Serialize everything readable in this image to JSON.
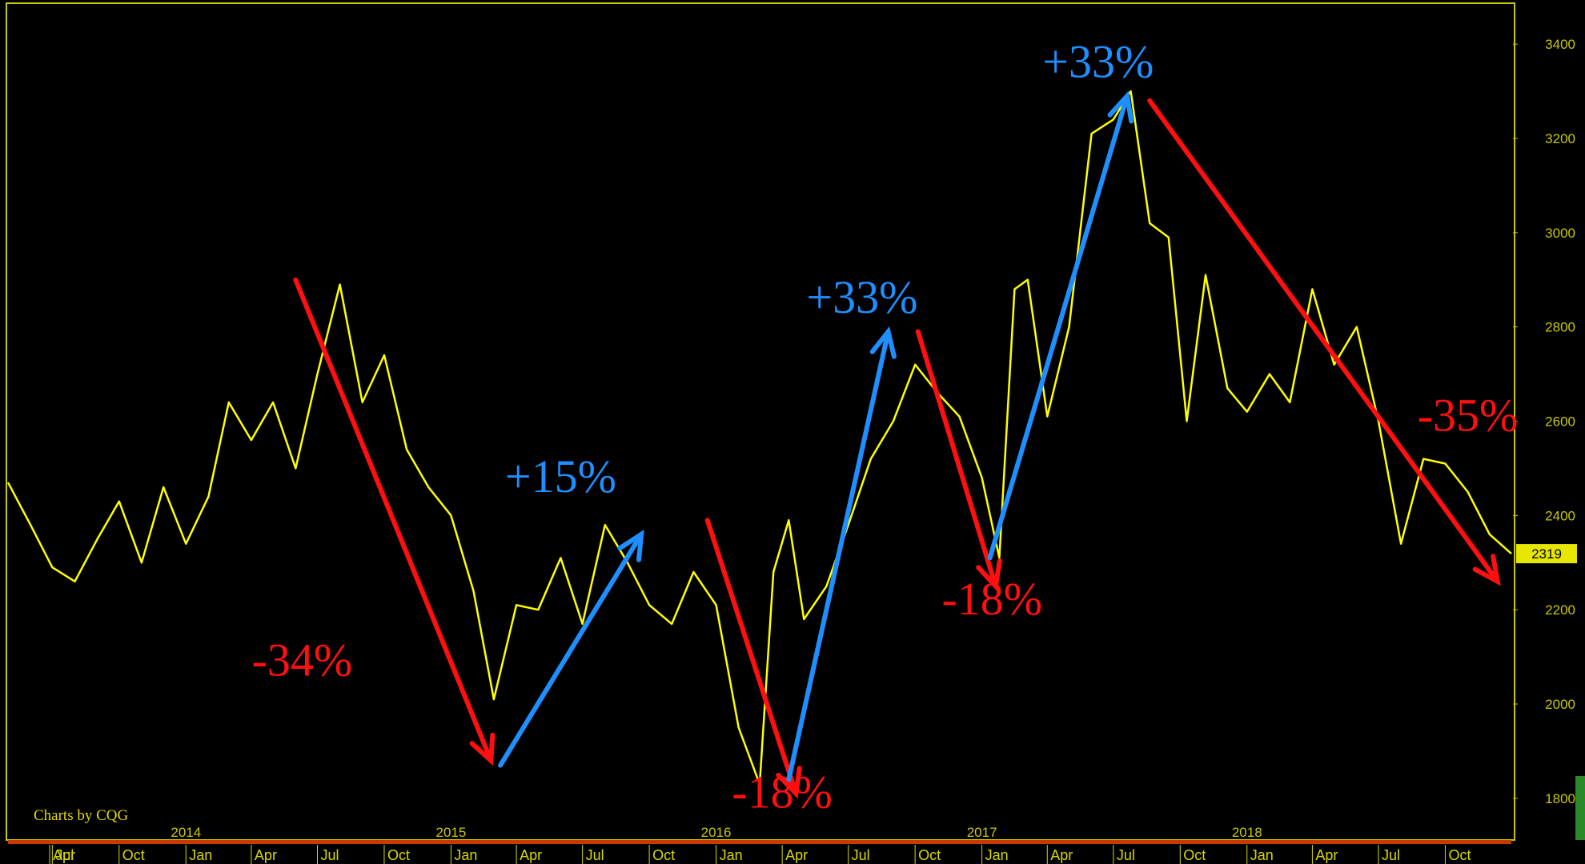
{
  "colors": {
    "background": "#000000",
    "price_line": "#ffff00",
    "axis_text": "#c8c800",
    "down_arrow": "#ff0f0f",
    "up_arrow": "#1f8fff",
    "last_value_badge": "#e6e600"
  },
  "credit": "Charts by CQG",
  "last_value": "2319",
  "chart_data": {
    "type": "line",
    "title": "",
    "xlabel": "",
    "ylabel": "",
    "ylim": [
      1720,
      3480
    ],
    "xlim": [
      "2013-05-01",
      "2018-12-31"
    ],
    "y_ticks": [
      "3400",
      "3200",
      "3000",
      "2800",
      "2600",
      "2400",
      "2200",
      "2000",
      "1800"
    ],
    "year_ticks": [
      {
        "label": "2014",
        "date": "2014-01-01"
      },
      {
        "label": "2015",
        "date": "2015-01-01"
      },
      {
        "label": "2016",
        "date": "2016-01-01"
      },
      {
        "label": "2017",
        "date": "2017-01-01"
      },
      {
        "label": "2018",
        "date": "2018-01-01"
      }
    ],
    "month_ticks": [
      {
        "label": "Apr",
        "date": "2013-04-01"
      },
      {
        "label": "Jul",
        "date": "2013-07-01"
      },
      {
        "label": "Oct",
        "date": "2013-10-01"
      },
      {
        "label": "Jan",
        "date": "2014-01-01"
      },
      {
        "label": "Apr",
        "date": "2014-04-01"
      },
      {
        "label": "Jul",
        "date": "2014-07-01"
      },
      {
        "label": "Oct",
        "date": "2014-10-01"
      },
      {
        "label": "Jan",
        "date": "2015-01-01"
      },
      {
        "label": "Apr",
        "date": "2015-04-01"
      },
      {
        "label": "Jul",
        "date": "2015-07-01"
      },
      {
        "label": "Oct",
        "date": "2015-10-01"
      },
      {
        "label": "Jan",
        "date": "2016-01-01"
      },
      {
        "label": "Apr",
        "date": "2016-04-01"
      },
      {
        "label": "Jul",
        "date": "2016-07-01"
      },
      {
        "label": "Oct",
        "date": "2016-10-01"
      },
      {
        "label": "Jan",
        "date": "2017-01-01"
      },
      {
        "label": "Apr",
        "date": "2017-04-01"
      },
      {
        "label": "Jul",
        "date": "2017-07-01"
      },
      {
        "label": "Oct",
        "date": "2017-10-01"
      },
      {
        "label": "Jan",
        "date": "2018-01-01"
      },
      {
        "label": "Apr",
        "date": "2018-04-01"
      },
      {
        "label": "Jul",
        "date": "2018-07-01"
      },
      {
        "label": "Oct",
        "date": "2018-10-01"
      }
    ],
    "series": [
      {
        "points": [
          [
            "2013-05-01",
            2470
          ],
          [
            "2013-06-01",
            2380
          ],
          [
            "2013-07-01",
            2290
          ],
          [
            "2013-08-01",
            2260
          ],
          [
            "2013-09-01",
            2350
          ],
          [
            "2013-10-01",
            2430
          ],
          [
            "2013-11-01",
            2300
          ],
          [
            "2013-12-01",
            2460
          ],
          [
            "2014-01-01",
            2340
          ],
          [
            "2014-02-01",
            2440
          ],
          [
            "2014-03-01",
            2640
          ],
          [
            "2014-04-01",
            2560
          ],
          [
            "2014-05-01",
            2640
          ],
          [
            "2014-06-01",
            2500
          ],
          [
            "2014-07-01",
            2700
          ],
          [
            "2014-08-01",
            2890
          ],
          [
            "2014-09-01",
            2640
          ],
          [
            "2014-10-01",
            2740
          ],
          [
            "2014-11-01",
            2540
          ],
          [
            "2014-12-01",
            2460
          ],
          [
            "2015-01-01",
            2400
          ],
          [
            "2015-02-01",
            2240
          ],
          [
            "2015-03-01",
            2010
          ],
          [
            "2015-04-01",
            2210
          ],
          [
            "2015-05-01",
            2200
          ],
          [
            "2015-06-01",
            2310
          ],
          [
            "2015-07-01",
            2170
          ],
          [
            "2015-08-01",
            2380
          ],
          [
            "2015-09-01",
            2300
          ],
          [
            "2015-10-01",
            2210
          ],
          [
            "2015-11-01",
            2170
          ],
          [
            "2015-12-01",
            2280
          ],
          [
            "2016-01-01",
            2210
          ],
          [
            "2016-02-01",
            1950
          ],
          [
            "2016-03-01",
            1830
          ],
          [
            "2016-03-20",
            2280
          ],
          [
            "2016-04-10",
            2390
          ],
          [
            "2016-05-01",
            2180
          ],
          [
            "2016-06-01",
            2250
          ],
          [
            "2016-07-01",
            2380
          ],
          [
            "2016-08-01",
            2520
          ],
          [
            "2016-09-01",
            2600
          ],
          [
            "2016-10-01",
            2720
          ],
          [
            "2016-11-01",
            2660
          ],
          [
            "2016-12-01",
            2610
          ],
          [
            "2017-01-01",
            2480
          ],
          [
            "2017-01-25",
            2310
          ],
          [
            "2017-02-15",
            2880
          ],
          [
            "2017-03-05",
            2900
          ],
          [
            "2017-04-01",
            2610
          ],
          [
            "2017-05-01",
            2800
          ],
          [
            "2017-06-01",
            3210
          ],
          [
            "2017-07-01",
            3240
          ],
          [
            "2017-07-25",
            3300
          ],
          [
            "2017-08-20",
            3020
          ],
          [
            "2017-09-15",
            2990
          ],
          [
            "2017-10-10",
            2600
          ],
          [
            "2017-11-05",
            2910
          ],
          [
            "2017-12-05",
            2670
          ],
          [
            "2018-01-01",
            2620
          ],
          [
            "2018-02-01",
            2700
          ],
          [
            "2018-03-01",
            2640
          ],
          [
            "2018-04-01",
            2880
          ],
          [
            "2018-05-01",
            2720
          ],
          [
            "2018-06-01",
            2800
          ],
          [
            "2018-07-01",
            2600
          ],
          [
            "2018-08-01",
            2340
          ],
          [
            "2018-09-01",
            2520
          ],
          [
            "2018-10-01",
            2510
          ],
          [
            "2018-11-01",
            2450
          ],
          [
            "2018-12-01",
            2360
          ],
          [
            "2018-12-31",
            2319
          ]
        ]
      }
    ],
    "annotations": [
      {
        "text": "-34%",
        "direction": "down",
        "from": [
          "2014-06-01",
          2900
        ],
        "to": [
          "2015-02-25",
          1880
        ],
        "label_at": [
          "2014-06-10",
          2060
        ]
      },
      {
        "text": "+15%",
        "direction": "up",
        "from": [
          "2015-03-10",
          1870
        ],
        "to": [
          "2015-09-20",
          2360
        ],
        "label_at": [
          "2015-06-01",
          2450
        ]
      },
      {
        "text": "-18%",
        "direction": "down",
        "from": [
          "2015-12-20",
          2390
        ],
        "to": [
          "2016-04-20",
          1810
        ],
        "label_at": [
          "2016-04-01",
          1780
        ]
      },
      {
        "text": "+33%",
        "direction": "up",
        "from": [
          "2016-04-10",
          1840
        ],
        "to": [
          "2016-08-25",
          2790
        ],
        "label_at": [
          "2016-07-20",
          2830
        ]
      },
      {
        "text": "-18%",
        "direction": "down",
        "from": [
          "2016-10-05",
          2790
        ],
        "to": [
          "2017-01-20",
          2250
        ],
        "label_at": [
          "2017-01-15",
          2190
        ]
      },
      {
        "text": "+33%",
        "direction": "up",
        "from": [
          "2017-01-12",
          2310
        ],
        "to": [
          "2017-07-20",
          3290
        ],
        "label_at": [
          "2017-06-10",
          3330
        ]
      },
      {
        "text": "-35%",
        "direction": "down",
        "from": [
          "2017-08-20",
          3280
        ],
        "to": [
          "2018-12-12",
          2260
        ],
        "label_at": [
          "2018-11-01",
          2580
        ]
      }
    ]
  }
}
